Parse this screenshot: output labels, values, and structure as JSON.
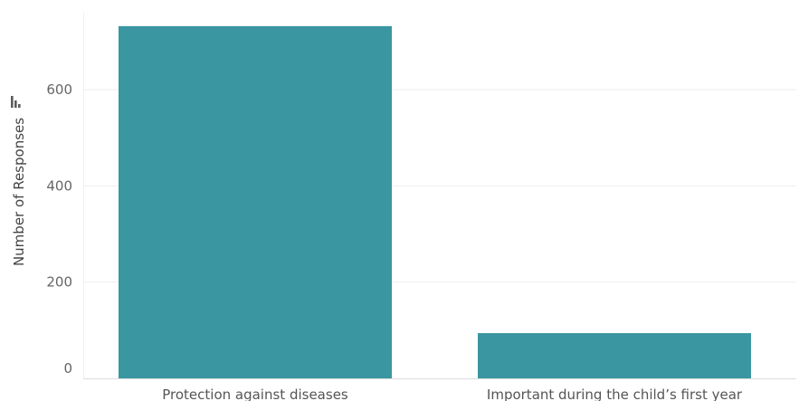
{
  "chart_data": {
    "type": "bar",
    "categories": [
      "Protection against diseases",
      "Important during the child’s first year"
    ],
    "values": [
      732,
      94
    ],
    "title": "",
    "xlabel": "",
    "ylabel": "Number of Responses",
    "ylim": [
      0,
      760
    ],
    "yticks": [
      0,
      200,
      400,
      600
    ],
    "grid": true,
    "legend": "none",
    "bar_color": "#3a96a0",
    "grid_color": "#eeeeee"
  },
  "icons": {
    "axis_sort": "bar-sort-icon"
  }
}
